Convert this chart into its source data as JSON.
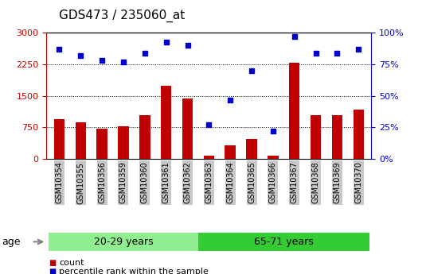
{
  "title": "GDS473 / 235060_at",
  "samples": [
    "GSM10354",
    "GSM10355",
    "GSM10356",
    "GSM10359",
    "GSM10360",
    "GSM10361",
    "GSM10362",
    "GSM10363",
    "GSM10364",
    "GSM10365",
    "GSM10366",
    "GSM10367",
    "GSM10368",
    "GSM10369",
    "GSM10370"
  ],
  "counts": [
    950,
    870,
    720,
    780,
    1050,
    1750,
    1430,
    80,
    330,
    480,
    80,
    2280,
    1050,
    1050,
    1170
  ],
  "percentile": [
    87,
    82,
    78,
    77,
    84,
    93,
    90,
    27,
    47,
    70,
    22,
    97,
    84,
    84,
    87
  ],
  "group1_label": "20-29 years",
  "group2_label": "65-71 years",
  "group1_count": 7,
  "group2_count": 8,
  "bar_color": "#c00000",
  "dot_color": "#0000cc",
  "group1_bg": "#90ee90",
  "group2_bg": "#33cc33",
  "tick_bg": "#c8c8c8",
  "ylim_left": [
    0,
    3000
  ],
  "ylim_right": [
    0,
    100
  ],
  "yticks_left": [
    0,
    750,
    1500,
    2250,
    3000
  ],
  "yticks_right": [
    0,
    25,
    50,
    75,
    100
  ],
  "legend_count_label": "count",
  "legend_pct_label": "percentile rank within the sample",
  "age_label": "age"
}
